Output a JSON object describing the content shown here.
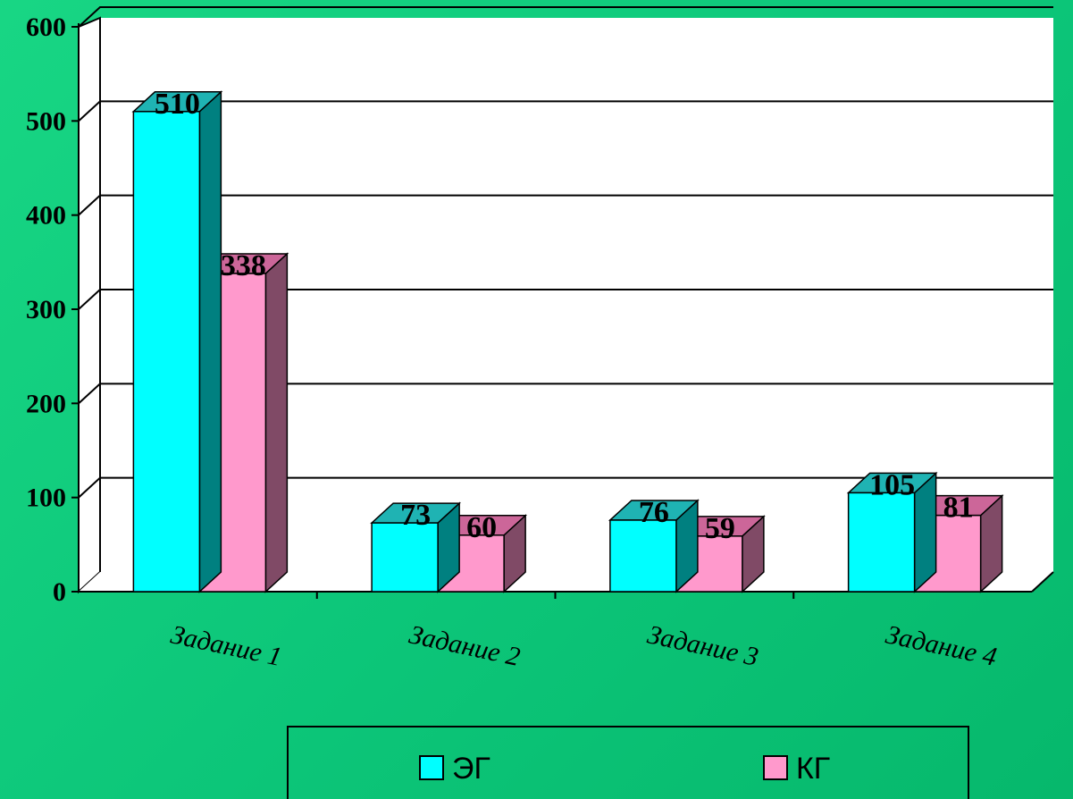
{
  "chart_data": {
    "type": "bar",
    "categories": [
      "Задание 1",
      "Задание 2",
      "Задание 3",
      "Задание 4"
    ],
    "series": [
      {
        "name": "ЭГ",
        "values": [
          510,
          73,
          76,
          105
        ],
        "color": "#00ffff",
        "side_color": "#008080",
        "top_color": "#1fb3b3"
      },
      {
        "name": "КГ",
        "values": [
          338,
          60,
          59,
          81
        ],
        "color": "#ff99cc",
        "side_color": "#804a66",
        "top_color": "#cc6699"
      }
    ],
    "title": "",
    "xlabel": "",
    "ylabel": "",
    "ylim": [
      0,
      600
    ],
    "yticks": [
      0,
      100,
      200,
      300,
      400,
      500,
      600
    ],
    "grid": true,
    "legend_position": "bottom",
    "three_d": true,
    "wall_color": "#ffffff"
  }
}
